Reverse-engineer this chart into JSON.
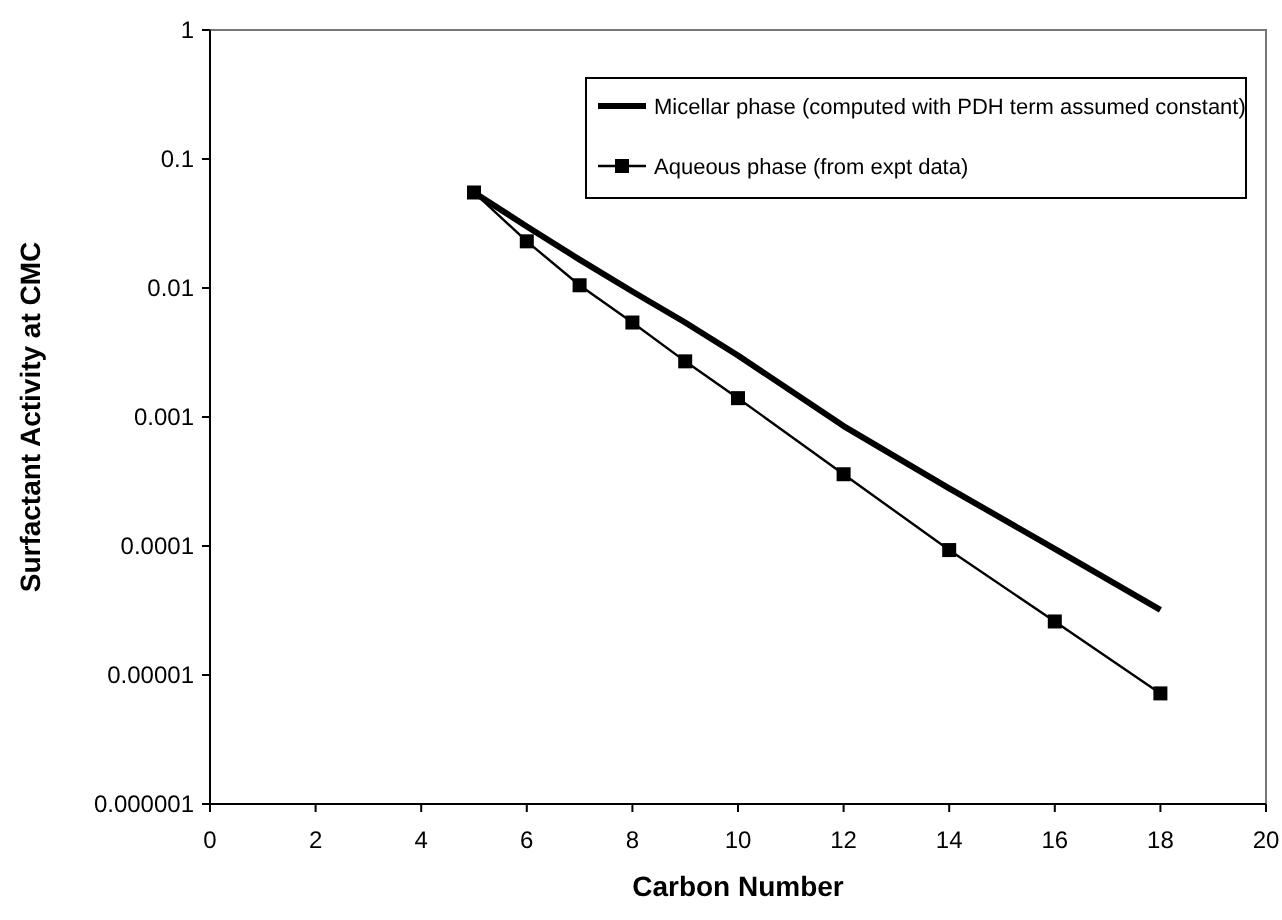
{
  "chart_data": {
    "type": "line",
    "xlabel": "Carbon Number",
    "ylabel": "Surfactant Activity at CMC",
    "log": "y",
    "xlim": [
      0,
      20
    ],
    "xticks": [
      0,
      2,
      4,
      6,
      8,
      10,
      12,
      14,
      16,
      18,
      20
    ],
    "ylim": [
      1e-06,
      1
    ],
    "yticks": [
      {
        "value": 1e-06,
        "label": "0.000001"
      },
      {
        "value": 1e-05,
        "label": "0.00001"
      },
      0.0001,
      0.001,
      0.01,
      0.1,
      1
    ],
    "grid": false,
    "legend": "top right",
    "series": [
      {
        "name": "Micellar phase (computed with PDH term assumed constant)",
        "color": "#000000",
        "marker": "none",
        "x": [
          5,
          6,
          7,
          8,
          9,
          10,
          12,
          14,
          16,
          18
        ],
        "values": [
          0.055,
          0.03,
          0.0166,
          0.0094,
          0.0054,
          0.003,
          0.00085,
          0.00028,
          9.5e-05,
          3.2e-05
        ]
      },
      {
        "name": "Aqueous phase (from expt data)",
        "color": "#000000",
        "marker": "square",
        "x": [
          5,
          6,
          7,
          8,
          9,
          10,
          12,
          14,
          16,
          18
        ],
        "values": [
          0.055,
          0.023,
          0.0105,
          0.0054,
          0.0027,
          0.0014,
          0.00036,
          9.3e-05,
          2.6e-05,
          7.2e-06
        ]
      }
    ]
  }
}
